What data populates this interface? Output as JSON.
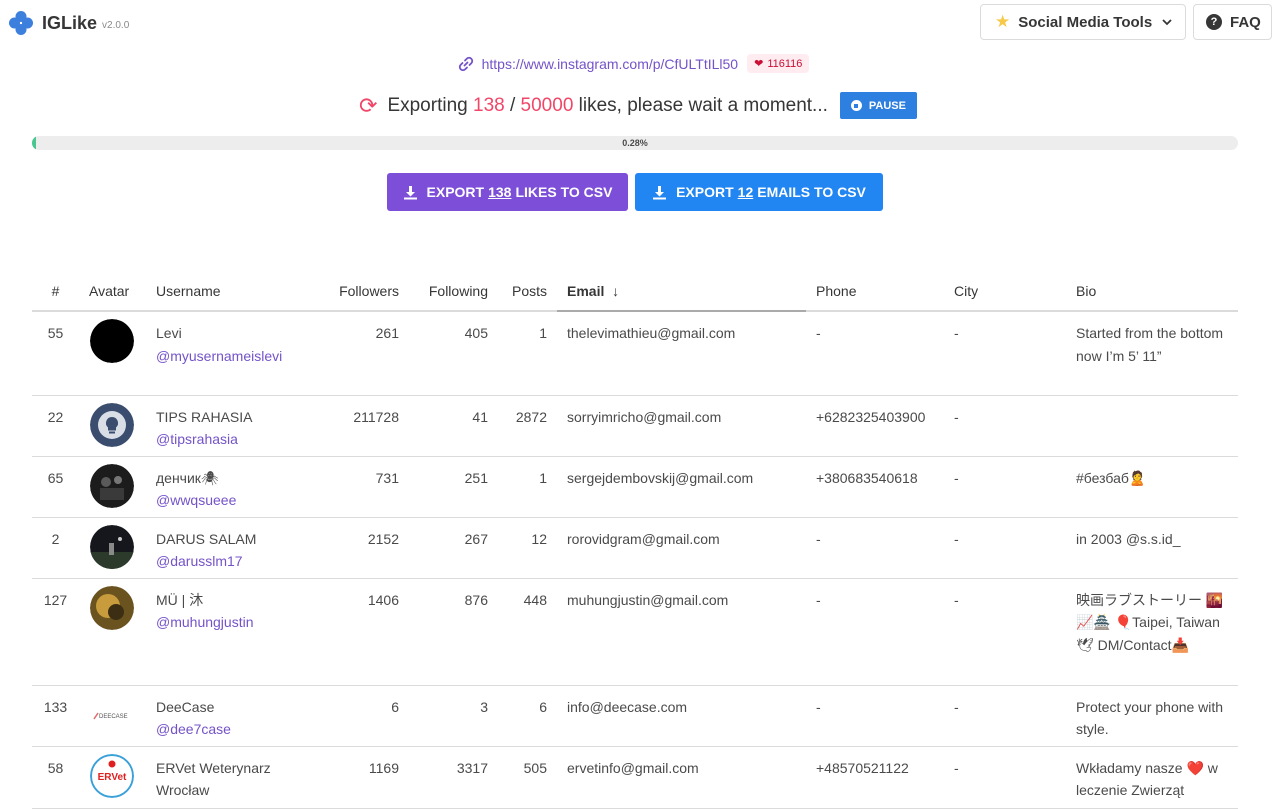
{
  "app": {
    "name": "IGLike",
    "version": "v2.0.0"
  },
  "nav": {
    "tools_label": "Social Media Tools",
    "faq_label": "FAQ"
  },
  "post": {
    "url": "https://www.instagram.com/p/CfULTtILl50",
    "likes": "116116"
  },
  "status": {
    "prefix": "Exporting",
    "exported": "138",
    "separator": "/",
    "total": "50000",
    "suffix": "likes, please wait a moment...",
    "pause_label": "PAUSE",
    "progress_pct": 0.28,
    "progress_label": "0.28%"
  },
  "export": {
    "likes_prefix": "EXPORT",
    "likes_count": "138",
    "likes_suffix": "LIKES TO CSV",
    "emails_prefix": "EXPORT",
    "emails_count": "12",
    "emails_suffix": "EMAILS TO CSV"
  },
  "colors": {
    "accent_purple": "#7d4fd8",
    "accent_blue": "#2185f2",
    "highlight_red": "#f14668",
    "progress_green": "#48c78e",
    "link_purple": "#7453c8"
  },
  "table": {
    "headers": [
      "#",
      "Avatar",
      "Username",
      "Followers",
      "Following",
      "Posts",
      "Email",
      "Phone",
      "City",
      "Bio"
    ],
    "sort_arrow": "↓",
    "rows": [
      {
        "num": "55",
        "name": "Levi",
        "handle": "@myusernameislevi",
        "followers": "261",
        "following": "405",
        "posts": "1",
        "email": "thelevimathieu@gmail.com",
        "phone": "-",
        "city": "-",
        "bio": "Started from the bottom now I’m 5’ 11”",
        "avatar": "black-circle"
      },
      {
        "num": "22",
        "name": "TIPS RAHASIA",
        "handle": "@tipsrahasia",
        "followers": "211728",
        "following": "41",
        "posts": "2872",
        "email": "sorryimricho@gmail.com",
        "phone": "+6282325403900",
        "city": "-",
        "bio": "",
        "avatar": "lightbulb-badge"
      },
      {
        "num": "65",
        "name": "денчик🕷",
        "handle": "@wwqsueee",
        "followers": "731",
        "following": "251",
        "posts": "1",
        "email": "sergejdembovskij@gmail.com",
        "phone": "+380683540618",
        "city": "-",
        "bio": "#безбаб🙎",
        "avatar": "dark-photo"
      },
      {
        "num": "2",
        "name": "DARUS SALAM",
        "handle": "@darusslm17",
        "followers": "2152",
        "following": "267",
        "posts": "12",
        "email": "rorovidgram@gmail.com",
        "phone": "-",
        "city": "-",
        "bio": "in 2003 @s.s.id_",
        "avatar": "night-field-photo"
      },
      {
        "num": "127",
        "name": "MÜ | 沐",
        "handle": "@muhungjustin",
        "followers": "1406",
        "following": "876",
        "posts": "448",
        "email": "muhungjustin@gmail.com",
        "phone": "-",
        "city": "-",
        "bio": "映画ラブストーリー 🌇📈🏯 🎈Taipei, Taiwan 🕊 DM/Contact📥",
        "avatar": "golden-photo"
      },
      {
        "num": "133",
        "name": "DeeCase",
        "handle": "@dee7case",
        "followers": "6",
        "following": "3",
        "posts": "6",
        "email": "info@deecase.com",
        "phone": "-",
        "city": "-",
        "bio": "Protect your phone with style.",
        "avatar": "deecase-logo"
      },
      {
        "num": "58",
        "name": "ERVet Weterynarz Wrocław",
        "handle": "",
        "followers": "1169",
        "following": "3317",
        "posts": "505",
        "email": "ervetinfo@gmail.com",
        "phone": "+48570521122",
        "city": "-",
        "bio": "Wkładamy nasze ❤️ w leczenie Zwierząt",
        "avatar": "ervet-logo"
      }
    ],
    "avatar_labels": {
      "deecase": "DEECASE",
      "ervet": "ERVet"
    }
  }
}
